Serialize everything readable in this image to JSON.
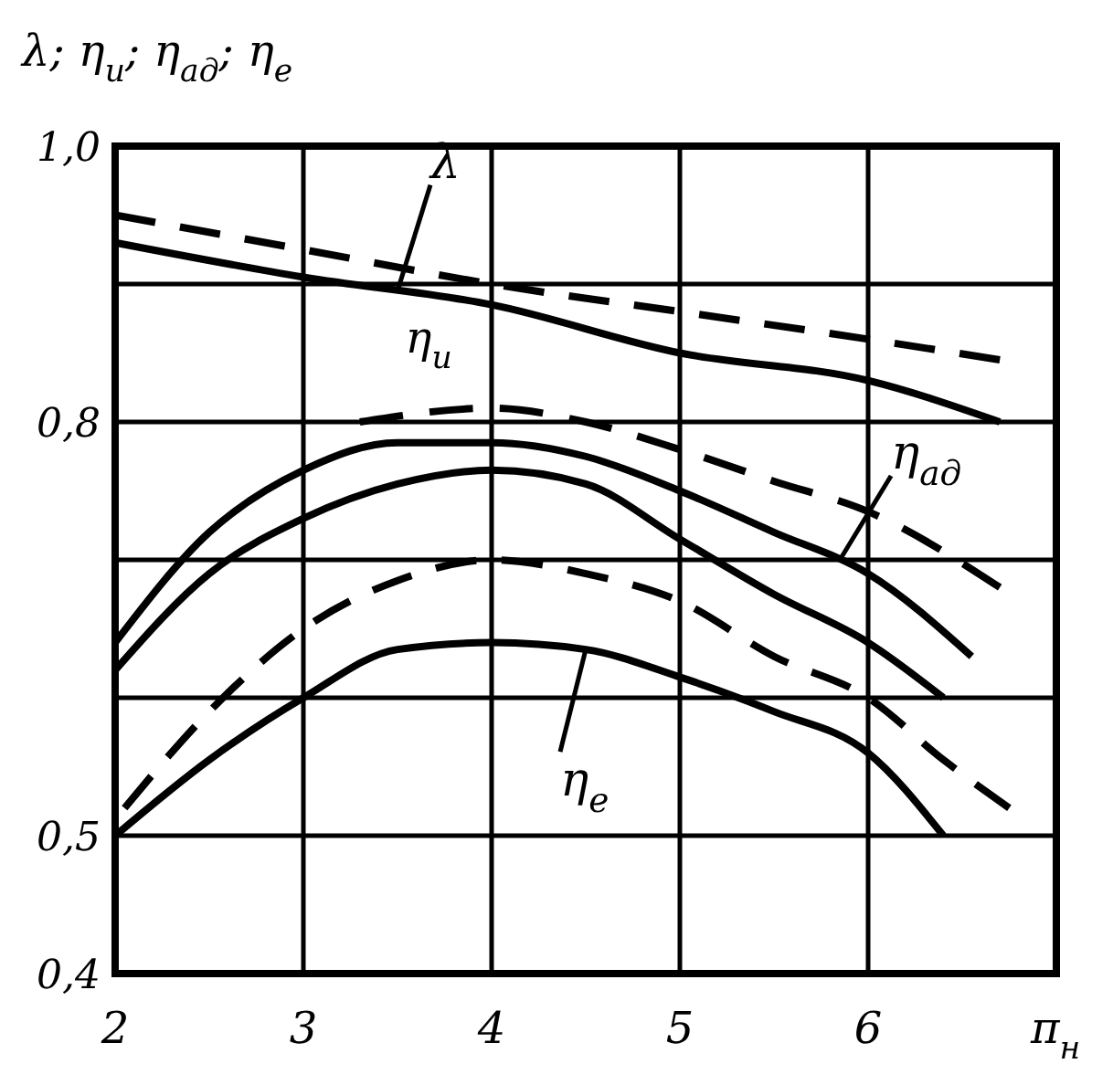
{
  "chart_data": {
    "type": "line",
    "xlabel": "π$_{н}$",
    "ylabel": "λ; η$_{и}$; η$_{ад}$; η$_{е}$",
    "xlim": [
      2,
      7
    ],
    "xticks": [
      2,
      3,
      4,
      5,
      6
    ],
    "ylim": [
      0.4,
      1.0
    ],
    "yticks": [
      {
        "value": 0.4,
        "label": "0,4"
      },
      {
        "value": 0.5,
        "label": "0,5"
      },
      {
        "value": 0.6,
        "label": null
      },
      {
        "value": 0.7,
        "label": null
      },
      {
        "value": 0.8,
        "label": "0,8"
      },
      {
        "value": 0.9,
        "label": null
      },
      {
        "value": 1.0,
        "label": "1,0"
      }
    ],
    "grid": true,
    "series": [
      {
        "color": "#000000",
        "line_style": "solid",
        "x": [
          2,
          3,
          4,
          5,
          6,
          6.7
        ],
        "values": [
          0.93,
          0.905,
          0.885,
          0.85,
          0.83,
          0.8
        ]
      },
      {
        "color": "#000000",
        "line_style": "dashed",
        "x": [
          2,
          3,
          4,
          5,
          6,
          6.7
        ],
        "values": [
          0.95,
          0.925,
          0.9,
          0.88,
          0.86,
          0.845
        ]
      },
      {
        "color": "#000000",
        "line_style": "dashed",
        "x": [
          3.3,
          4,
          4.5,
          5,
          5.5,
          6,
          6.7
        ],
        "values": [
          0.8,
          0.81,
          0.8,
          0.78,
          0.757,
          0.735,
          0.68
        ]
      },
      {
        "color": "#000000",
        "line_style": "solid",
        "x": [
          2,
          2.5,
          3,
          3.5,
          4,
          4.5,
          5,
          5.5,
          6,
          6.55
        ],
        "values": [
          0.64,
          0.72,
          0.765,
          0.785,
          0.785,
          0.775,
          0.75,
          0.72,
          0.69,
          0.63
        ]
      },
      {
        "color": "#000000",
        "line_style": "solid",
        "x": [
          2,
          2.5,
          3,
          3.5,
          4,
          4.5,
          5,
          5.5,
          6,
          6.4
        ],
        "values": [
          0.62,
          0.69,
          0.73,
          0.755,
          0.765,
          0.755,
          0.715,
          0.675,
          0.64,
          0.6
        ]
      },
      {
        "color": "#000000",
        "line_style": "dashed",
        "x": [
          2.05,
          2.5,
          3,
          3.5,
          4,
          4.5,
          5,
          5.5,
          6,
          6.4,
          6.75
        ],
        "values": [
          0.52,
          0.59,
          0.65,
          0.685,
          0.7,
          0.69,
          0.67,
          0.63,
          0.6,
          0.555,
          0.52
        ]
      },
      {
        "color": "#000000",
        "line_style": "solid",
        "x": [
          2,
          2.5,
          3,
          3.5,
          4,
          4.5,
          5,
          5.5,
          6,
          6.4
        ],
        "values": [
          0.5,
          0.555,
          0.6,
          0.635,
          0.64,
          0.635,
          0.615,
          0.59,
          0.56,
          0.5
        ]
      }
    ],
    "annotations": [
      {
        "text": "λ",
        "x": 3.5,
        "y": 0.895
      },
      {
        "text": "η$_{и}$",
        "x": 3.6,
        "y": 0.805
      },
      {
        "text": "η$_{ад}$",
        "x": 5.85,
        "y": 0.7
      },
      {
        "text": "η$_{е}$",
        "x": 4.5,
        "y": 0.635
      }
    ]
  }
}
